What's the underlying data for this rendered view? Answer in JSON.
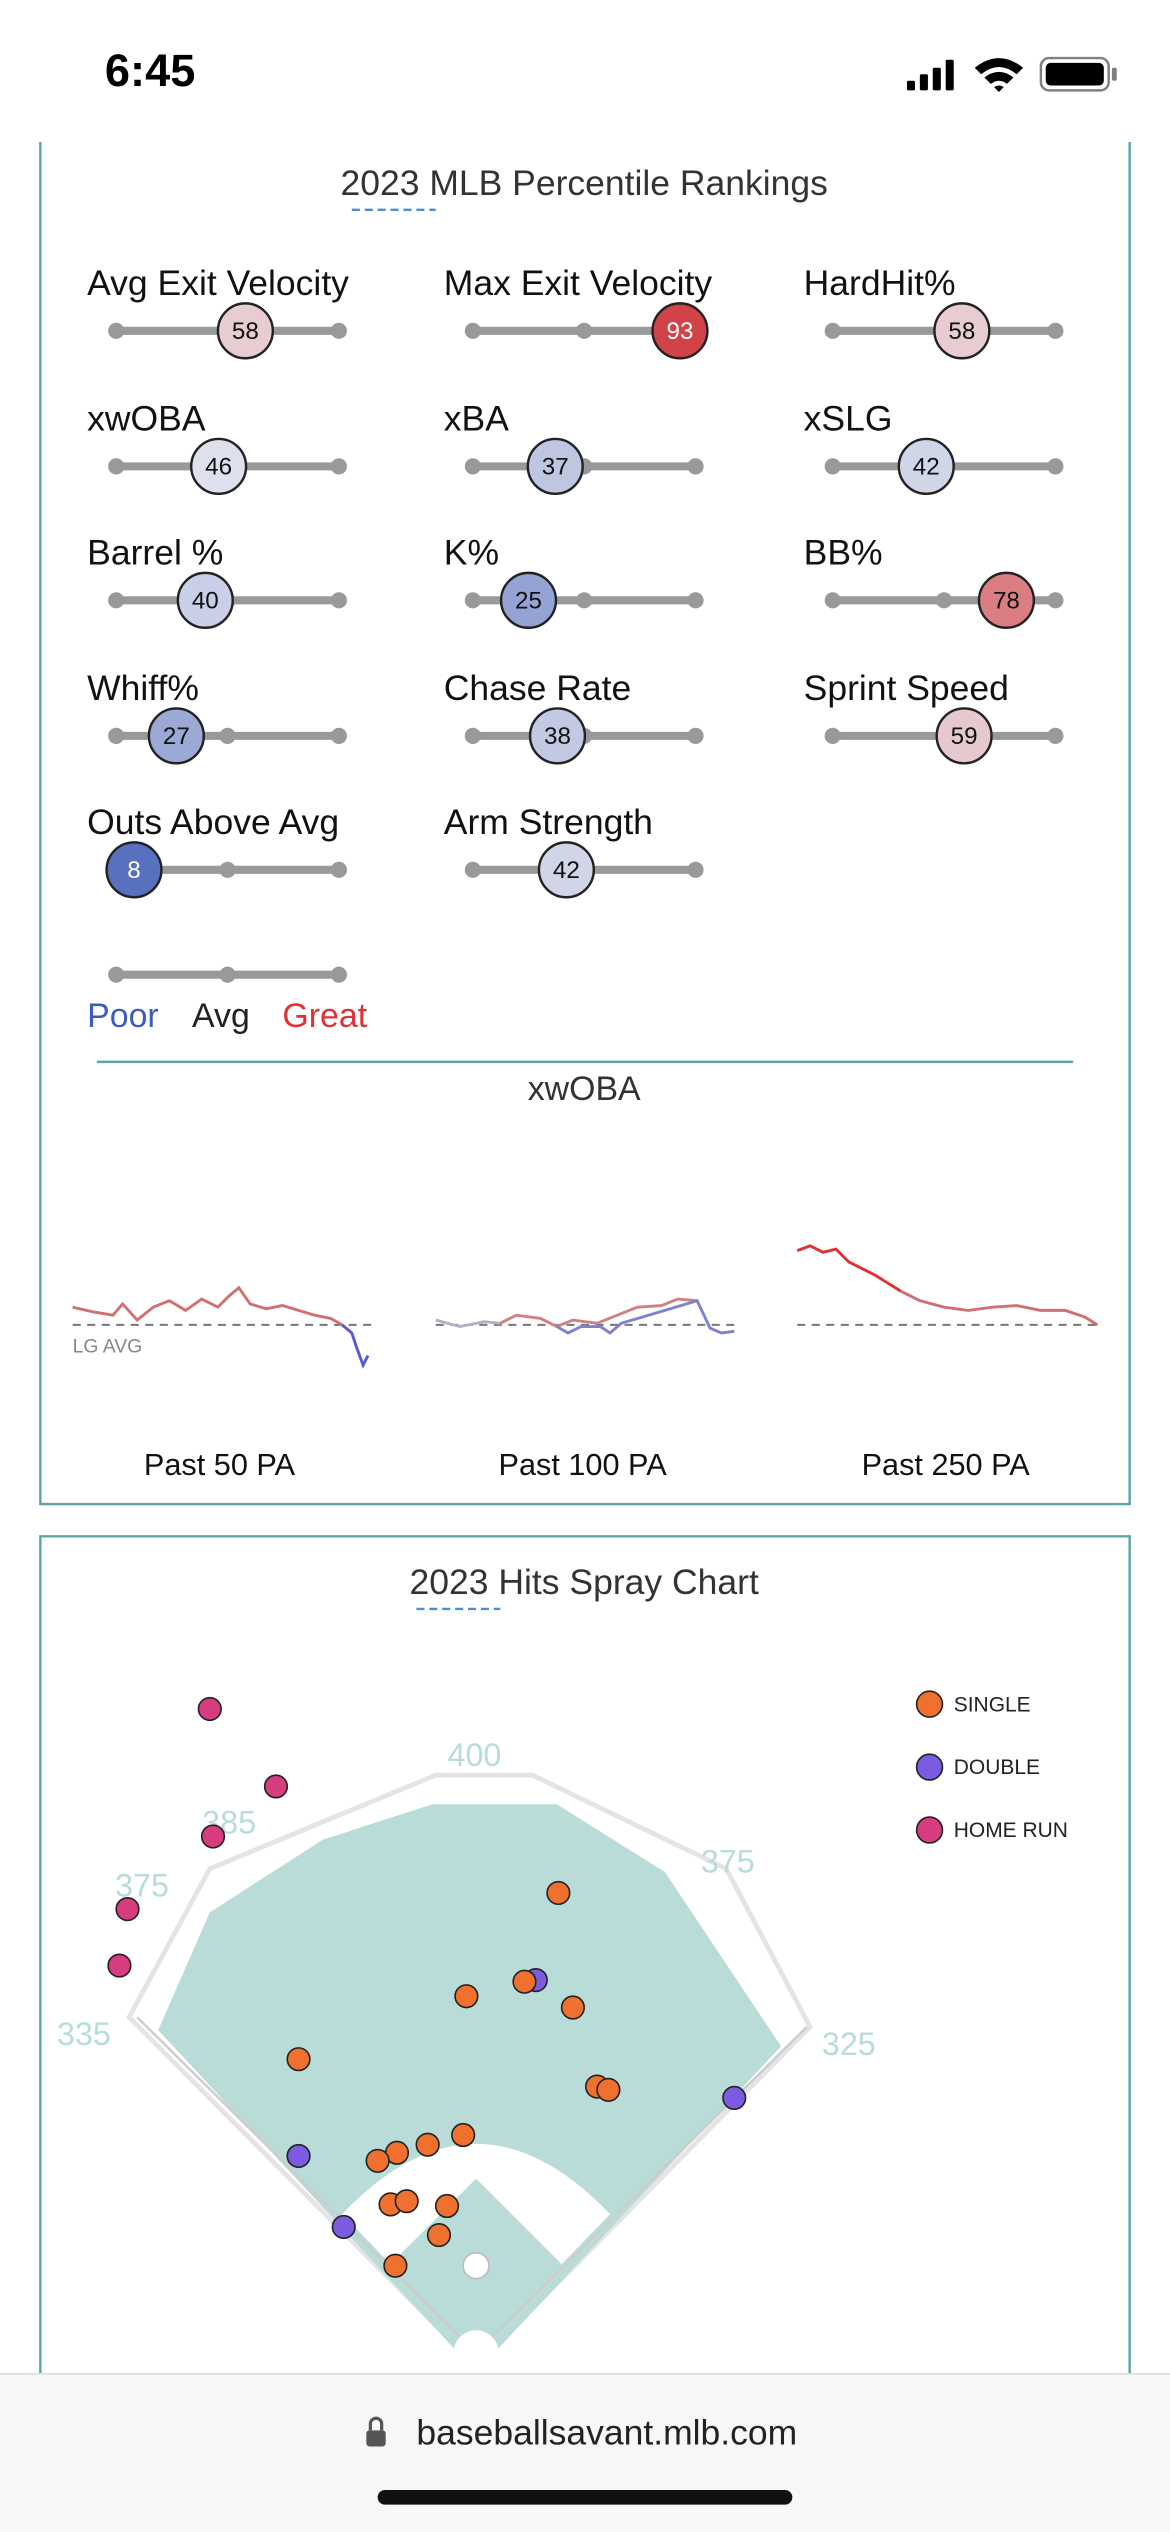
{
  "status_bar": {
    "time": "6:45"
  },
  "percentile_rankings": {
    "title": "2023 MLB Percentile Rankings",
    "metrics": [
      {
        "name": "Avg Exit Velocity",
        "percentile": 58
      },
      {
        "name": "Max Exit Velocity",
        "percentile": 93
      },
      {
        "name": "HardHit%",
        "percentile": 58
      },
      {
        "name": "xwOBA",
        "percentile": 46
      },
      {
        "name": "xBA",
        "percentile": 37
      },
      {
        "name": "xSLG",
        "percentile": 42
      },
      {
        "name": "Barrel %",
        "percentile": 40
      },
      {
        "name": "K%",
        "percentile": 25
      },
      {
        "name": "BB%",
        "percentile": 78
      },
      {
        "name": "Whiff%",
        "percentile": 27
      },
      {
        "name": "Chase Rate",
        "percentile": 38
      },
      {
        "name": "Sprint Speed",
        "percentile": 59
      },
      {
        "name": "Outs Above Avg",
        "percentile": 8
      },
      {
        "name": "Arm Strength",
        "percentile": 42
      }
    ],
    "legend": {
      "poor": "Poor",
      "avg": "Avg",
      "great": "Great"
    }
  },
  "xwoba": {
    "title": "xwOBA",
    "baseline_label": "LG AVG",
    "windows": [
      "Past 50 PA",
      "Past 100 PA",
      "Past 250 PA"
    ]
  },
  "spray_chart": {
    "title": "2023 Hits Spray Chart",
    "legend": [
      {
        "label": "SINGLE",
        "color": "#f07030"
      },
      {
        "label": "DOUBLE",
        "color": "#7b5ce0"
      },
      {
        "label": "HOME RUN",
        "color": "#d63c7f"
      }
    ],
    "distances": [
      400,
      385,
      375,
      375,
      335,
      325
    ]
  },
  "browser": {
    "url": "baseballsavant.mlb.com"
  }
}
